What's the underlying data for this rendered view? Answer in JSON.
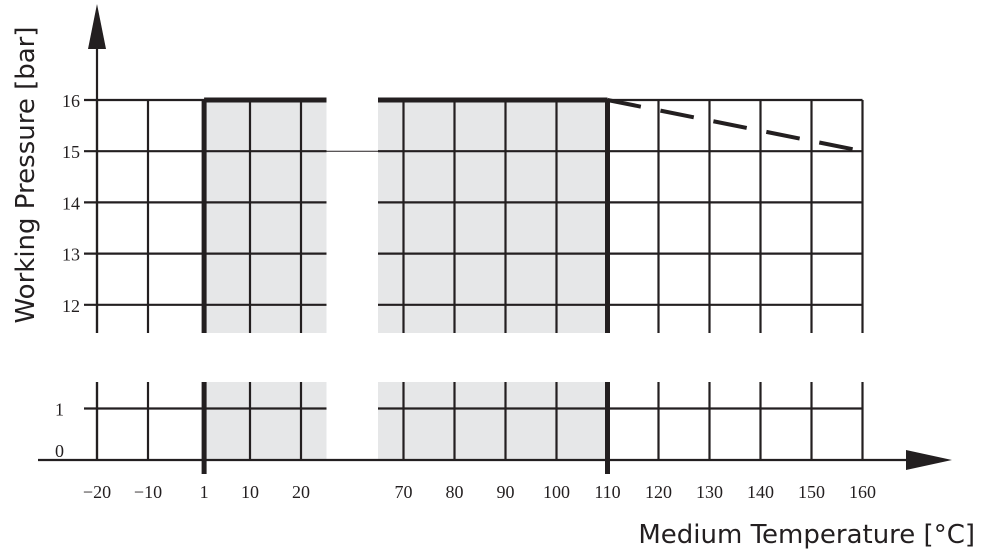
{
  "chart_data": {
    "type": "line",
    "xlabel": "Medium Temperature [°C]",
    "ylabel": "Working Pressure [bar]",
    "x_tick_labels": [
      "−20",
      "−10",
      "1",
      "10",
      "20",
      "70",
      "80",
      "90",
      "100",
      "110",
      "120",
      "130",
      "140",
      "150",
      "160"
    ],
    "y_tick_labels_upper": [
      "16",
      "15",
      "14",
      "13",
      "12"
    ],
    "y_tick_labels_lower": [
      "1",
      "0"
    ],
    "x_range_segments": [
      [
        -20,
        25
      ],
      [
        65,
        160
      ]
    ],
    "y_range_upper": [
      11.5,
      16
    ],
    "y_range_lower": [
      0,
      1.5
    ],
    "grid": true,
    "shaded_regions": [
      {
        "x": [
          1,
          25
        ]
      },
      {
        "x": [
          65,
          110
        ]
      }
    ],
    "series": [
      {
        "style": "solid-thick",
        "x": [
          1,
          25
        ],
        "y": [
          16,
          16
        ]
      },
      {
        "style": "solid-thick",
        "x": [
          65,
          110
        ],
        "y": [
          16,
          16
        ]
      },
      {
        "style": "dashed",
        "x": [
          110,
          160
        ],
        "y": [
          16,
          15
        ]
      }
    ],
    "colors": {
      "line": "#231f20",
      "shade": "#e6e7e8",
      "background": "#ffffff"
    }
  }
}
